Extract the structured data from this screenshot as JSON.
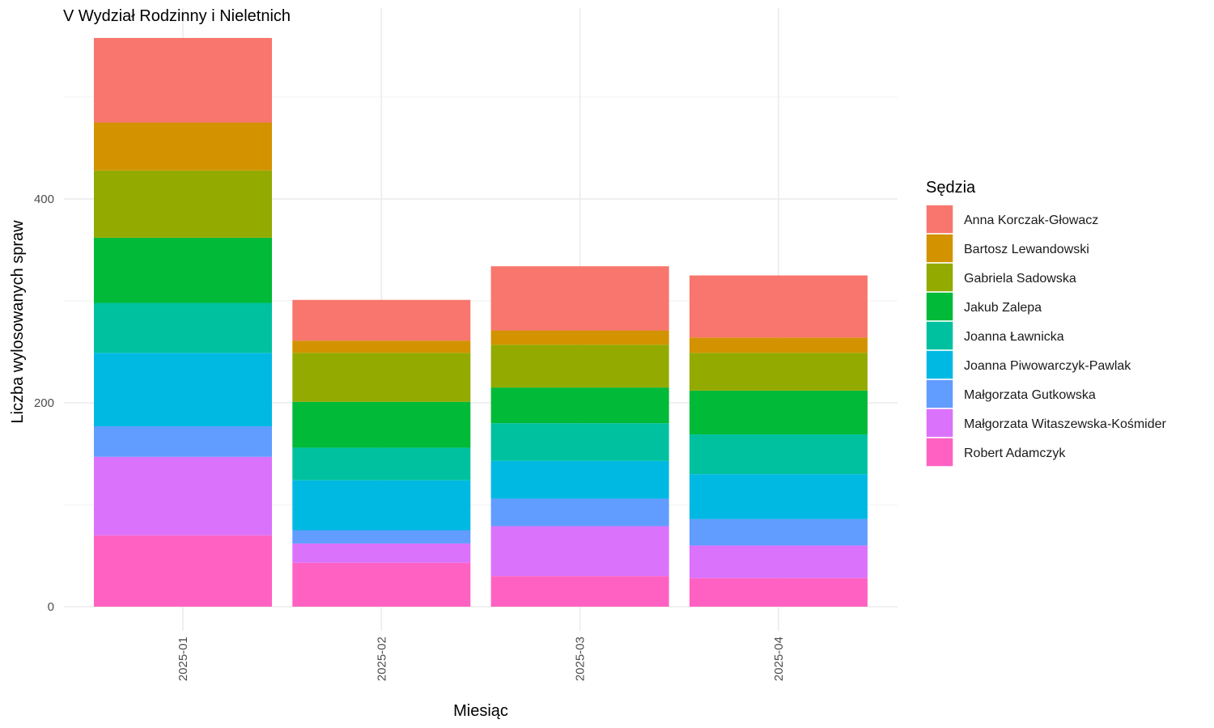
{
  "chart_data": {
    "type": "bar",
    "stacked": true,
    "title": "V Wydział Rodzinny i Nieletnich",
    "xlabel": "Miesiąc",
    "ylabel": "Liczba wylosowanych spraw",
    "ylim": [
      0,
      590
    ],
    "yticks": [
      0,
      200,
      400
    ],
    "categories": [
      "2025-01",
      "2025-02",
      "2025-03",
      "2025-04"
    ],
    "grid": true,
    "legend": {
      "title": "Sędzia",
      "position": "right"
    },
    "series": [
      {
        "name": "Anna Korczak-Głowacz",
        "color": "#F8766D",
        "values": [
          83,
          40,
          63,
          61
        ]
      },
      {
        "name": "Bartosz Lewandowski",
        "color": "#D39200",
        "values": [
          47,
          12,
          14,
          15
        ]
      },
      {
        "name": "Gabriela Sadowska",
        "color": "#93AA00",
        "values": [
          66,
          48,
          42,
          37
        ]
      },
      {
        "name": "Jakub Zalepa",
        "color": "#00BA38",
        "values": [
          64,
          45,
          35,
          43
        ]
      },
      {
        "name": "Joanna Ławnicka",
        "color": "#00C19F",
        "values": [
          49,
          32,
          37,
          39
        ]
      },
      {
        "name": "Joanna Piwowarczyk-Pawlak",
        "color": "#00B9E3",
        "values": [
          72,
          49,
          37,
          44
        ]
      },
      {
        "name": "Małgorzata Gutkowska",
        "color": "#619CFF",
        "values": [
          30,
          13,
          27,
          26
        ]
      },
      {
        "name": "Małgorzata Witaszewska-Kośmider",
        "color": "#DB72FB",
        "values": [
          77,
          19,
          49,
          32
        ]
      },
      {
        "name": "Robert Adamczyk",
        "color": "#FF61C3",
        "values": [
          70,
          43,
          30,
          28
        ]
      }
    ]
  }
}
